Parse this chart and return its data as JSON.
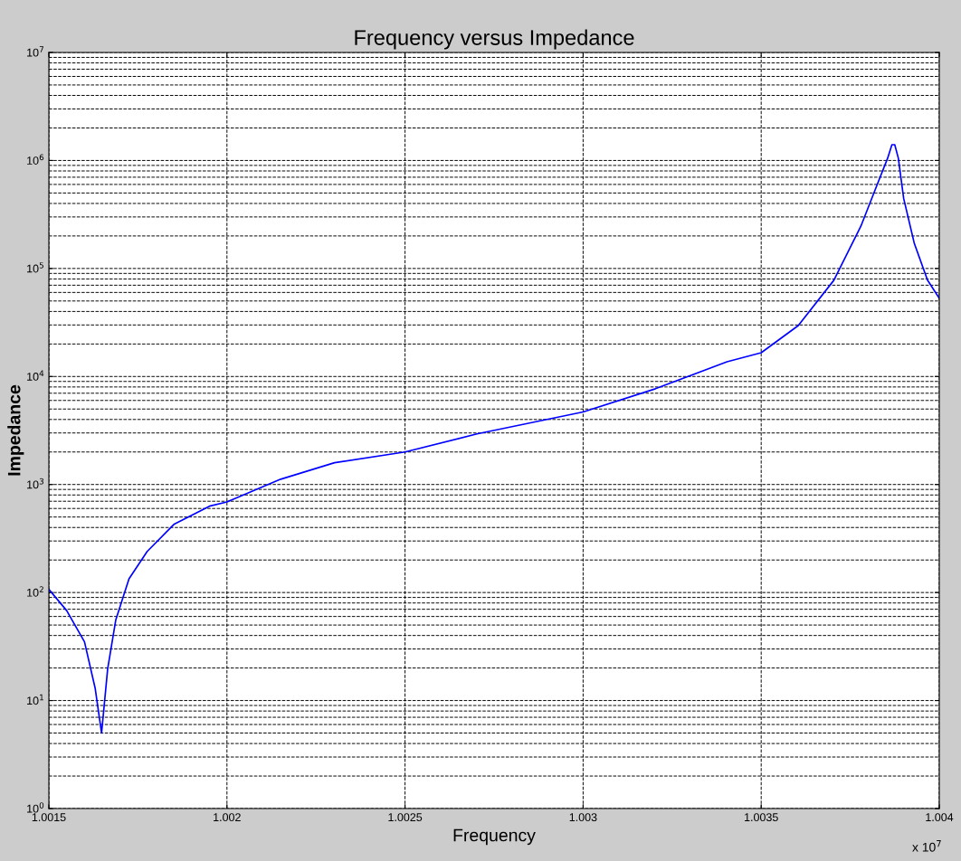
{
  "chart_data": {
    "type": "line",
    "title": "Frequency versus Impedance",
    "xlabel": "Frequency",
    "ylabel": "Impedance",
    "annotations": [
      "x 10$^{7}$"
    ],
    "x": [
      1.0015,
      1.00155,
      1.0016,
      1.00163,
      1.001648,
      1.001665,
      1.001688,
      1.001725,
      1.001776,
      1.001851,
      1.001951,
      1.002,
      1.002151,
      1.002302,
      1.0025,
      1.002702,
      1.003,
      1.003203,
      1.003404,
      1.0035,
      1.003604,
      1.003704,
      1.00378,
      1.00383,
      1.003855,
      1.003867,
      1.003875,
      1.003885,
      1.0039,
      1.00393,
      1.003967,
      1.004
    ],
    "series": [
      {
        "color": "#0000ff",
        "values": [
          107,
          68,
          35,
          13,
          5,
          19.5,
          56,
          134,
          240,
          427,
          630,
          690,
          1120,
          1590,
          2000,
          2940,
          4700,
          7700,
          13700,
          16600,
          29600,
          77800,
          247000,
          650000,
          1050000,
          1400000,
          1400000,
          1050000,
          445000,
          170000,
          78000,
          53000
        ]
      }
    ],
    "xlim": [
      1.0015,
      1.004
    ],
    "xticks": [
      1.0015,
      1.002,
      1.0025,
      1.003,
      1.0035,
      1.004
    ],
    "ylim": [
      1,
      10000000
    ],
    "log": "y",
    "yticks": [
      {
        "value": 1,
        "label": "10$^{0}$"
      },
      {
        "value": 10,
        "label": "10$^{1}$"
      },
      {
        "value": 100,
        "label": "10$^{2}$"
      },
      {
        "value": 1000,
        "label": "10$^{3}$"
      },
      {
        "value": 10000,
        "label": "10$^{4}$"
      },
      {
        "value": 100000,
        "label": "10$^{5}$"
      },
      {
        "value": 1000000,
        "label": "10$^{6}$"
      },
      {
        "value": 10000000,
        "label": "10$^{7}$"
      }
    ],
    "grid": true,
    "marker": "none",
    "line_style": "solid",
    "legend": false
  }
}
